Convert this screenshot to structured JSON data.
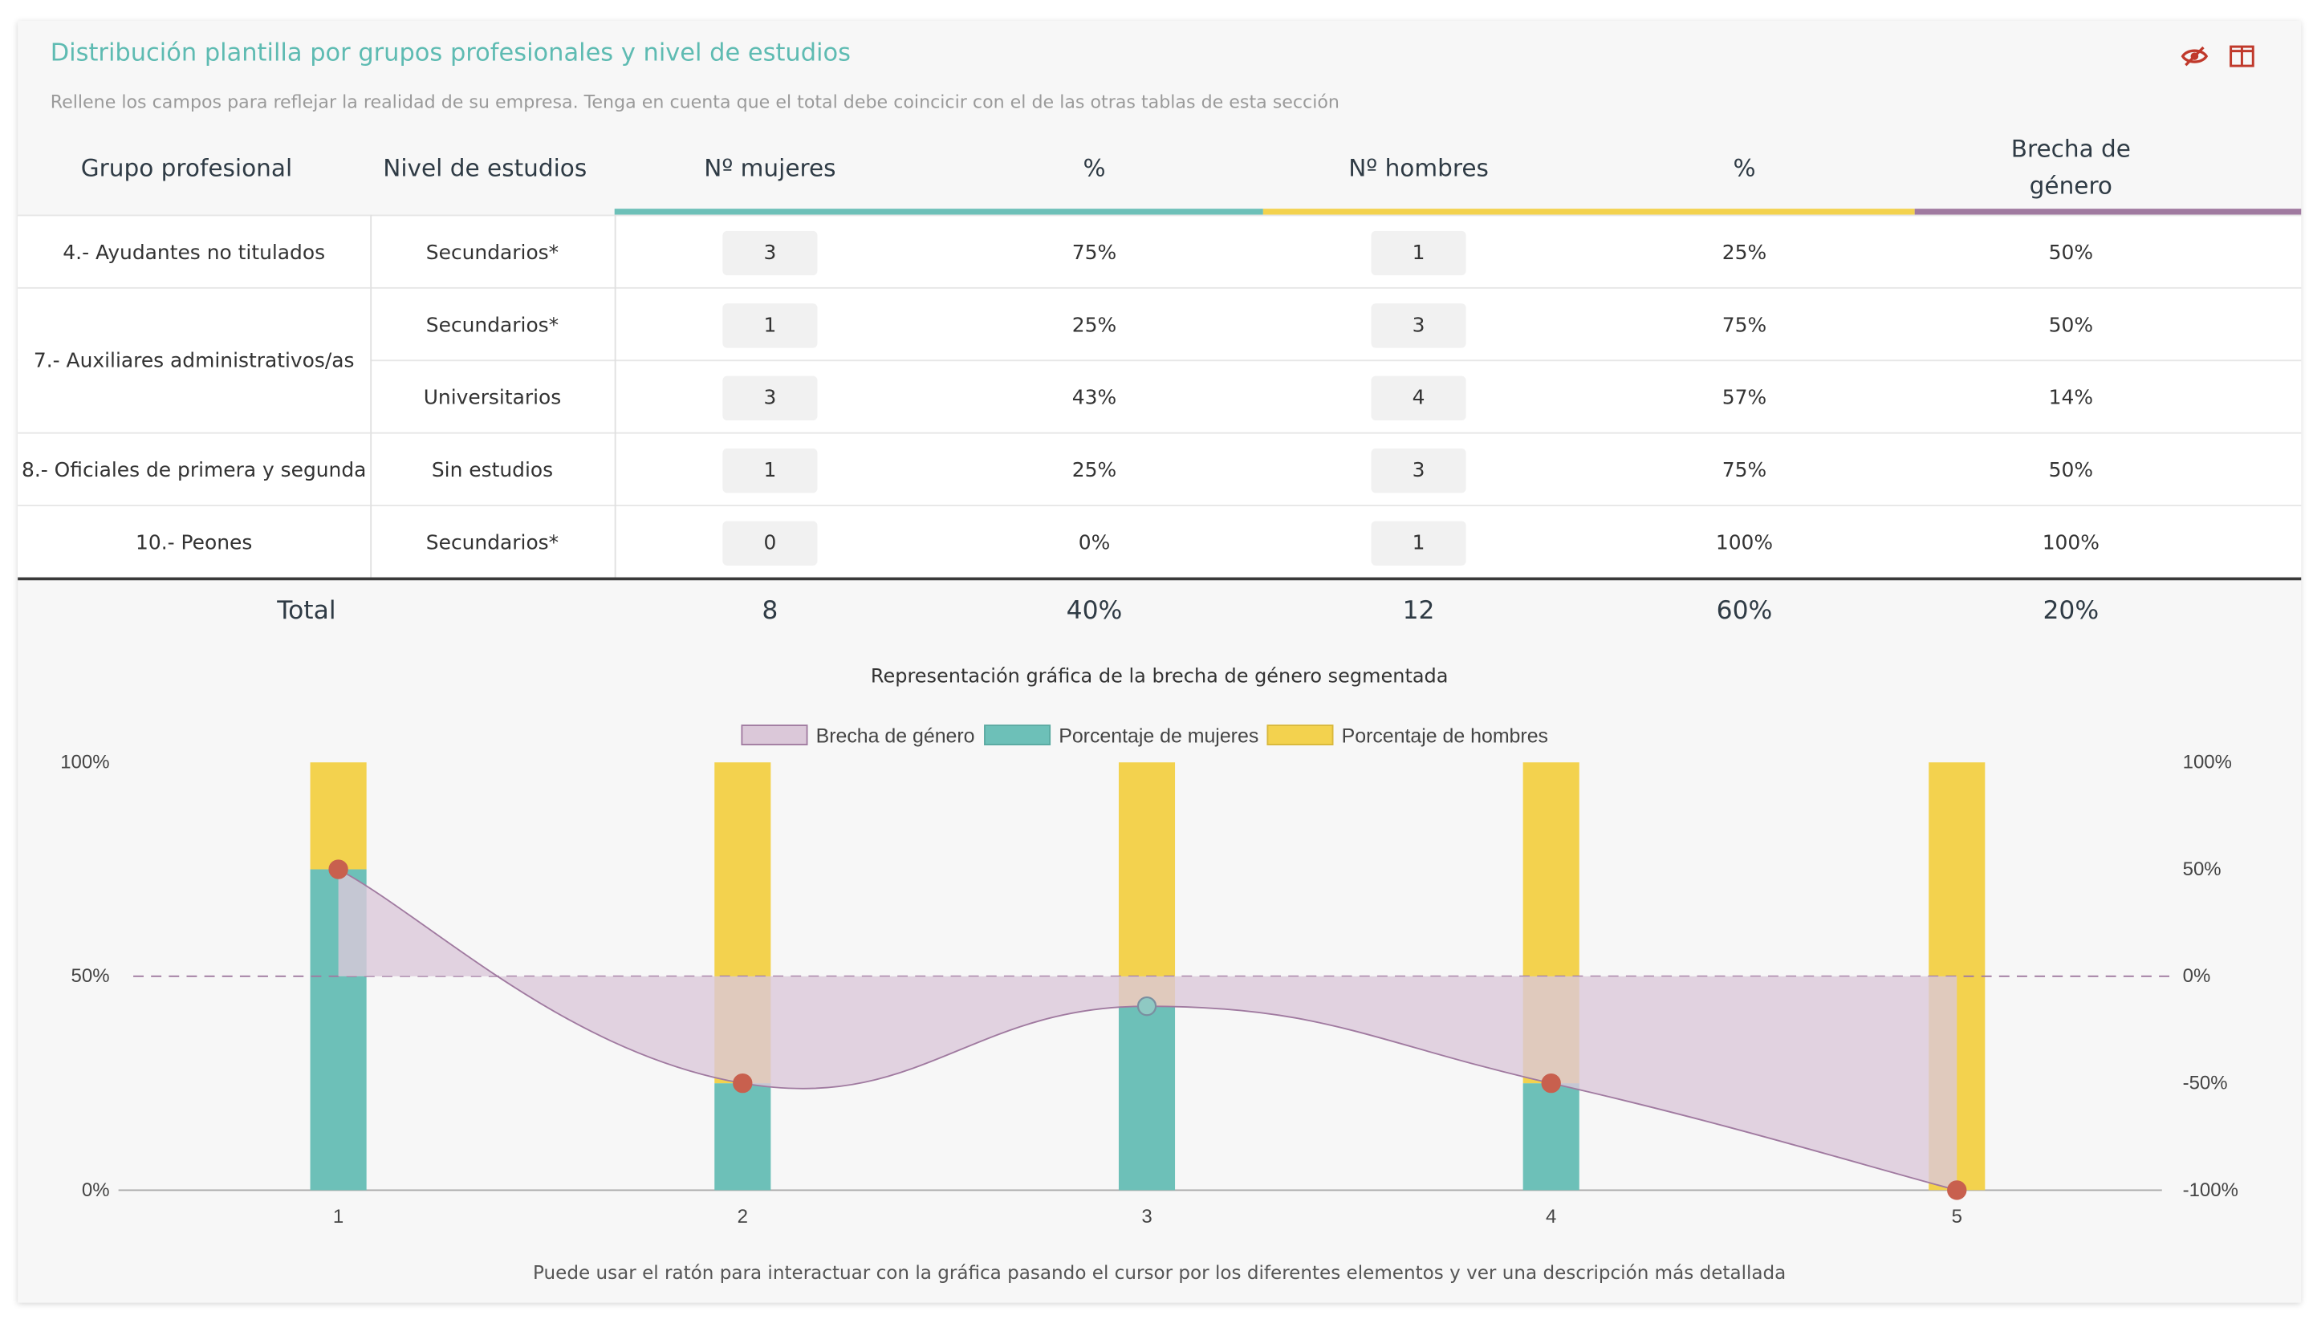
{
  "card": {
    "title": "Distribución plantilla por grupos profesionales y nivel de estudios",
    "subtitle": "Rellene los campos para reflejar la realidad de su empresa. Tenga en cuenta que el total debe coincicir con el de las otras tablas de esta sección",
    "icons": [
      "eye-off-icon",
      "panel-icon"
    ]
  },
  "table": {
    "headers": {
      "grupo": "Grupo profesional",
      "nivel": "Nivel de estudios",
      "mujeres": "Nº mujeres",
      "pct_m": "%",
      "hombres": "Nº hombres",
      "pct_h": "%",
      "brecha_1": "Brecha de",
      "brecha_2": "género"
    },
    "groups": [
      "4.- Ayudantes no titulados",
      "7.- Auxiliares administrativos/as",
      "8.- Oficiales de primera y segunda",
      "10.- Peones"
    ],
    "rows": [
      {
        "nivel": "Secundarios*",
        "mujeres": "3",
        "pct_m": "75%",
        "hombres": "1",
        "pct_h": "25%",
        "brecha": "50%"
      },
      {
        "nivel": "Secundarios*",
        "mujeres": "1",
        "pct_m": "25%",
        "hombres": "3",
        "pct_h": "75%",
        "brecha": "50%"
      },
      {
        "nivel": "Universitarios",
        "mujeres": "3",
        "pct_m": "43%",
        "hombres": "4",
        "pct_h": "57%",
        "brecha": "14%"
      },
      {
        "nivel": "Sin estudios",
        "mujeres": "1",
        "pct_m": "25%",
        "hombres": "3",
        "pct_h": "75%",
        "brecha": "50%"
      },
      {
        "nivel": "Secundarios*",
        "mujeres": "0",
        "pct_m": "0%",
        "hombres": "1",
        "pct_h": "100%",
        "brecha": "100%"
      }
    ],
    "total": {
      "label": "Total",
      "mujeres": "8",
      "pct_m": "40%",
      "hombres": "12",
      "pct_h": "60%",
      "brecha": "20%"
    }
  },
  "colors": {
    "accent": "#5ebbb2",
    "mujeres": "#6dc0b8",
    "hombres": "#f3d24e",
    "brecha_fill": "#dbc8d9",
    "brecha_line": "#a07aa0",
    "point": "#c8604e",
    "icon_red": "#c0392b"
  },
  "chart_data": {
    "type": "bar",
    "title": "Representación gráfica de la brecha de género segmentada",
    "categories": [
      "1",
      "2",
      "3",
      "4",
      "5"
    ],
    "series": [
      {
        "name": "Porcentaje de mujeres",
        "values": [
          75,
          25,
          43,
          25,
          0
        ],
        "axis": "left"
      },
      {
        "name": "Porcentaje de hombres",
        "values": [
          25,
          75,
          57,
          75,
          100
        ],
        "axis": "left",
        "stacked": true
      },
      {
        "name": "Brecha de género",
        "type": "area-line",
        "values": [
          50,
          -50,
          -14,
          -50,
          -100
        ],
        "axis": "right"
      }
    ],
    "left_axis": {
      "ticks": [
        "0%",
        "50%",
        "100%"
      ],
      "ylim": [
        0,
        100
      ]
    },
    "right_axis": {
      "ticks": [
        "-100%",
        "-50%",
        "0%",
        "50%",
        "100%"
      ],
      "ylim": [
        -100,
        100
      ]
    },
    "zero_line": "dashed",
    "legend_position": "top-center",
    "footnote": "Puede usar el ratón para interactuar con la gráfica pasando el cursor por los diferentes elementos y ver una descripción más detallada"
  }
}
